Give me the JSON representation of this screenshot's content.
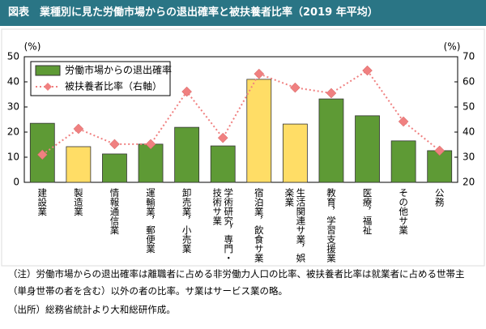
{
  "header": {
    "title": "図表　業種別に見た労働市場からの退出確率と被扶養者比率（2019 年平均）"
  },
  "chart_data": {
    "type": "bar",
    "ylabel": "(%)",
    "y2label": "(%)",
    "categories": [
      "建設業",
      "製造業",
      "情報通信業",
      "運輸業，郵便業",
      "卸売業，小売業",
      "学術研究，専門・技術サ業",
      "宿泊業，飲食サ業",
      "生活関連サ業，娯楽業",
      "教育，学習支援業",
      "医療，福祉",
      "その他サ業",
      "公務"
    ],
    "series": [
      {
        "name": "労働市場からの退出確率",
        "type": "bar",
        "color": "#5e9a35",
        "colors": [
          "#5e9a35",
          "#ffdd66",
          "#5e9a35",
          "#5e9a35",
          "#5e9a35",
          "#5e9a35",
          "#ffdd66",
          "#ffdd66",
          "#5e9a35",
          "#5e9a35",
          "#5e9a35",
          "#5e9a35"
        ],
        "values": [
          23.5,
          14.2,
          11.3,
          15.2,
          21.9,
          14.5,
          41,
          23.2,
          33.2,
          26.5,
          16.5,
          12.6
        ]
      },
      {
        "name": "被扶養者比率（右軸）",
        "type": "line",
        "axis": "y2",
        "color": "#f08080",
        "values": [
          31,
          41.3,
          35.2,
          35.2,
          56.1,
          37.7,
          63.2,
          57.7,
          55.5,
          64.5,
          44.2,
          32.6
        ]
      }
    ],
    "ylim": [
      0,
      50
    ],
    "yticks": [
      0,
      10,
      20,
      30,
      40,
      50
    ],
    "y2lim": [
      20,
      70
    ],
    "y2ticks": [
      20,
      30,
      40,
      50,
      60,
      70
    ],
    "legend": "upper-left",
    "grid": false
  },
  "notes": {
    "note": "（注）労働市場からの退出確率は離職者に占める非労働力人口の比率、被扶養者比率は就業者に占める世帯主（単身世帯の者を含む）以外の者の比率。サ業はサービス業の略。",
    "source": "（出所）総務省統計より大和総研作成。"
  }
}
